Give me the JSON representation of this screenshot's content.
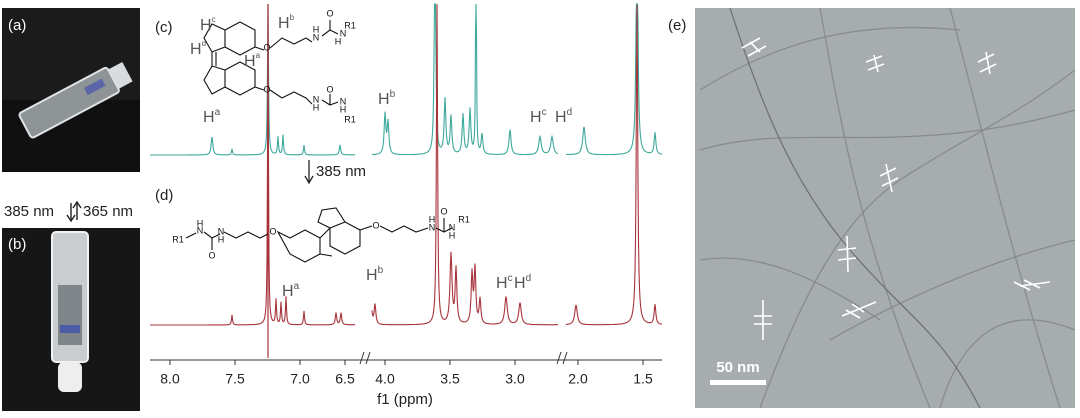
{
  "panels": {
    "a": "(a)",
    "b": "(b)",
    "c": "(c)",
    "d": "(d)",
    "e": "(e)"
  },
  "switching": {
    "forward": "385 nm",
    "backward": "365 nm"
  },
  "nmr": {
    "irradiation": "385 nm",
    "x_axis_label": "f1 (ppm)",
    "x_ticks": [
      "8.0",
      "7.5",
      "7.0",
      "6.5",
      "4.0",
      "3.5",
      "3.0",
      "2.0",
      "1.5"
    ],
    "peak_labels_c": [
      {
        "atom": "H",
        "site": "a"
      },
      {
        "atom": "H",
        "site": "b"
      },
      {
        "atom": "H",
        "site": "c"
      },
      {
        "atom": "H",
        "site": "d"
      }
    ],
    "peak_labels_d": [
      {
        "atom": "H",
        "site": "a"
      },
      {
        "atom": "H",
        "site": "b"
      },
      {
        "atom": "H",
        "site": "c"
      },
      {
        "atom": "H",
        "site": "d"
      }
    ]
  },
  "structure_c": {
    "sites": [
      {
        "atom": "H",
        "site": "c"
      },
      {
        "atom": "H",
        "site": "d"
      },
      {
        "atom": "H",
        "site": "a"
      },
      {
        "atom": "H",
        "site": "b"
      }
    ],
    "atoms": [
      "O",
      "H",
      "N",
      "O",
      "N",
      "H",
      "R1",
      "O",
      "H",
      "N",
      "O",
      "N",
      "H",
      "R1"
    ]
  },
  "structure_d": {
    "atoms": [
      "R1",
      "H",
      "N",
      "O",
      "N",
      "H",
      "O",
      "O",
      "H",
      "N",
      "O",
      "N",
      "H",
      "R1"
    ]
  },
  "micrograph": {
    "scale_bar": "50 nm"
  }
}
